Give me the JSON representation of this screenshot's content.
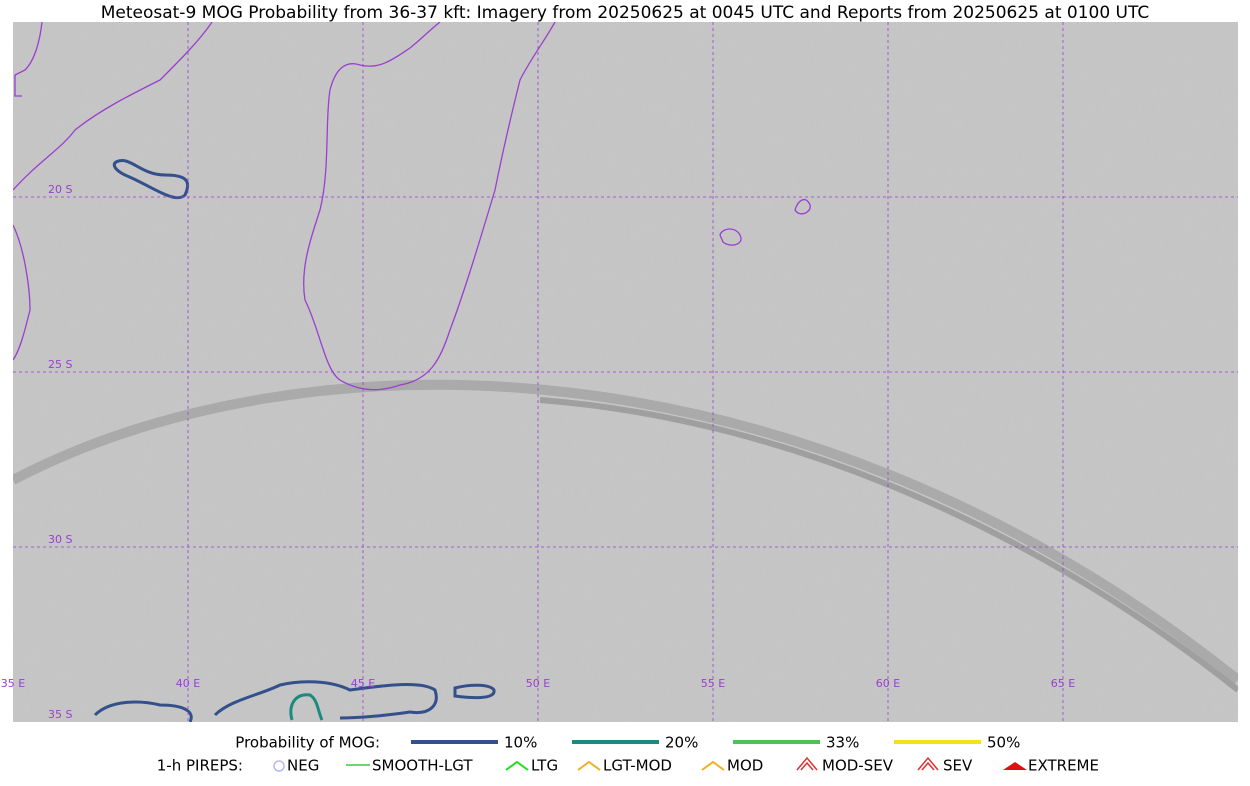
{
  "header": {
    "title": "Meteosat-9 MOG Probability from 36-37 kft: Imagery from 20250625 at 0045 UTC and Reports from 20250625 at 0100 UTC"
  },
  "map": {
    "lat_labels": [
      "20 S",
      "25 S",
      "30 S",
      "35 S"
    ],
    "lon_labels": [
      "35 E",
      "40 E",
      "45 E",
      "50 E",
      "55 E",
      "60 E",
      "65 E"
    ]
  },
  "legend": {
    "prob_title": "Probability of MOG:",
    "prob_items": [
      {
        "label": "10%",
        "color": "#34508c"
      },
      {
        "label": "20%",
        "color": "#1b8a80"
      },
      {
        "label": "33%",
        "color": "#4cc35a"
      },
      {
        "label": "50%",
        "color": "#f5e01a"
      }
    ],
    "pirep_title": "1-h PIREPS:",
    "pirep_items": [
      {
        "label": "NEG",
        "color": "#b8b8f0"
      },
      {
        "label": "SMOOTH-LGT",
        "color": "#3ccc3c"
      },
      {
        "label": "LTG",
        "color": "#22dd22"
      },
      {
        "label": "LGT-MOD",
        "color": "#f0b020"
      },
      {
        "label": "MOD",
        "color": "#f0b020"
      },
      {
        "label": "MOD-SEV",
        "color": "#e03030"
      },
      {
        "label": "SEV",
        "color": "#e03030"
      },
      {
        "label": "EXTREME",
        "color": "#e01010"
      }
    ]
  }
}
